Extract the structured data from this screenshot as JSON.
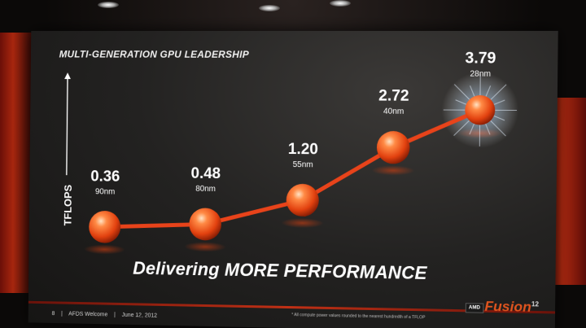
{
  "slide": {
    "title": "MULTI-GENERATION  GPU LEADERSHIP",
    "y_axis_label": "TFLOPS",
    "tagline": "Delivering MORE PERFORMANCE",
    "footer": {
      "page": "8",
      "event": "AFDS Welcome",
      "date": "June 12, 2012"
    },
    "footnote": "* All compute power values rounded to the nearest hundredth of a TFLOP",
    "amd_badge": "AMD",
    "fusion_logo": "Fusion",
    "fusion_superscript": "12"
  },
  "chart_data": {
    "type": "line",
    "ylabel": "TFLOPS",
    "points": [
      {
        "value_label": "0.36",
        "node": "90nm",
        "y": 0.36
      },
      {
        "value_label": "0.48",
        "node": "80nm",
        "y": 0.48
      },
      {
        "value_label": "1.20",
        "node": "55nm",
        "y": 1.2
      },
      {
        "value_label": "2.72",
        "node": "40nm",
        "y": 2.72
      },
      {
        "value_label": "3.79",
        "node": "28nm",
        "y": 3.79
      }
    ],
    "colors": {
      "line": "#e8431a",
      "marker": "#f0501e",
      "highlight_glow": "#ffffff"
    }
  }
}
